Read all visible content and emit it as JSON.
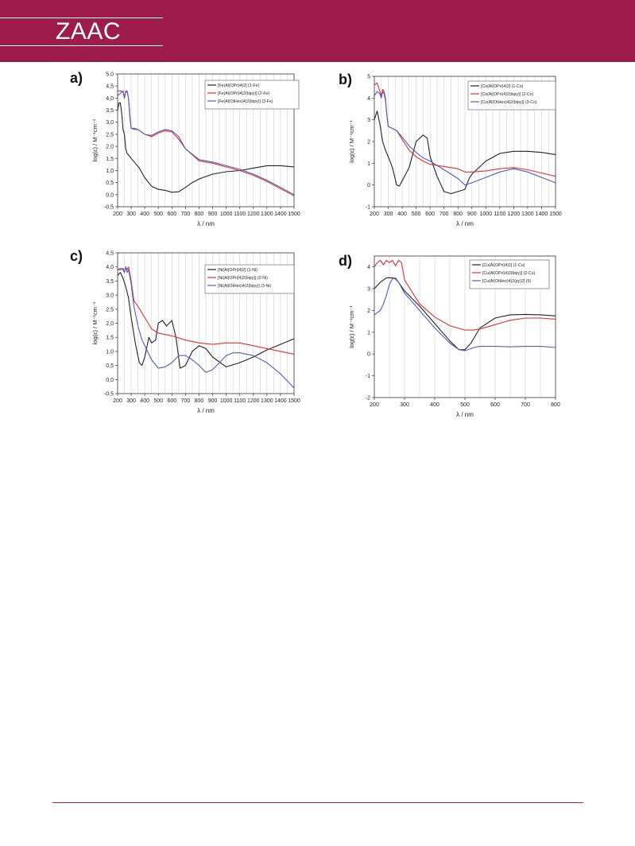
{
  "header": {
    "journal": "ZAAC",
    "color": "#9e1c49"
  },
  "chart_data": [
    {
      "panel": "a)",
      "type": "line",
      "xlabel": "λ / nm",
      "ylabel": "log(ε) / M⁻¹cm⁻¹",
      "xlim": [
        200,
        1500
      ],
      "ylim": [
        -0.5,
        5.0
      ],
      "xticks": [
        200,
        300,
        400,
        500,
        600,
        700,
        800,
        900,
        1000,
        1100,
        1200,
        1300,
        1400,
        1500
      ],
      "yticks": [
        "-0,5",
        "0,0",
        "0,5",
        "1,0",
        "1,5",
        "2,0",
        "2,5",
        "3,0",
        "3,5",
        "4,0",
        "4,5",
        "5,0"
      ],
      "yticks_values": [
        -0.5,
        0,
        0.5,
        1,
        1.5,
        2,
        2.5,
        3,
        3.5,
        4,
        4.5,
        5
      ],
      "grid": "vertical",
      "legend": "top-right",
      "series": [
        {
          "name": "[Fe(Al(OPri)4)2] (1-Fe)",
          "color": "#222222",
          "x": [
            200,
            210,
            220,
            230,
            240,
            250,
            260,
            270,
            280,
            300,
            330,
            360,
            400,
            450,
            500,
            550,
            600,
            650,
            700,
            750,
            800,
            900,
            1000,
            1100,
            1200,
            1300,
            1400,
            1500
          ],
          "y": [
            3.5,
            3.8,
            3.8,
            3.4,
            2.7,
            2.5,
            1.9,
            1.7,
            1.65,
            1.5,
            1.3,
            1.1,
            0.7,
            0.35,
            0.22,
            0.18,
            0.1,
            0.12,
            0.3,
            0.5,
            0.65,
            0.85,
            0.95,
            1.0,
            1.1,
            1.2,
            1.2,
            1.15
          ]
        },
        {
          "name": "[Fe(Al(OPri)4)2(bipy)] (2-Fe)",
          "color": "#e03030",
          "x": [
            200,
            220,
            240,
            250,
            260,
            270,
            280,
            290,
            300,
            320,
            350,
            400,
            450,
            500,
            550,
            600,
            650,
            700,
            800,
            900,
            1000,
            1100,
            1200,
            1300,
            1400,
            1500
          ],
          "y": [
            4.3,
            4.3,
            4.25,
            4.0,
            4.25,
            4.3,
            4.0,
            3.3,
            2.75,
            2.7,
            2.7,
            2.5,
            2.4,
            2.55,
            2.65,
            2.6,
            2.3,
            1.9,
            1.4,
            1.3,
            1.15,
            1.0,
            0.8,
            0.55,
            0.25,
            -0.05
          ]
        },
        {
          "name": "[Fe(Al(OtHex)4)2(bipy)] (3-Fe)",
          "color": "#4a5fc0",
          "x": [
            200,
            220,
            240,
            250,
            260,
            270,
            280,
            290,
            300,
            320,
            350,
            400,
            450,
            500,
            550,
            600,
            650,
            700,
            800,
            900,
            1000,
            1100,
            1200,
            1300,
            1400,
            1500
          ],
          "y": [
            4.1,
            4.2,
            4.3,
            4.0,
            4.3,
            4.25,
            4.0,
            3.2,
            2.75,
            2.75,
            2.7,
            2.5,
            2.45,
            2.6,
            2.7,
            2.65,
            2.4,
            1.9,
            1.45,
            1.35,
            1.2,
            1.05,
            0.85,
            0.6,
            0.3,
            0.0
          ]
        }
      ]
    },
    {
      "panel": "b)",
      "type": "line",
      "xlabel": "λ / nm",
      "ylabel": "log(ε) / M⁻¹cm⁻¹",
      "xlim": [
        200,
        1500
      ],
      "ylim": [
        -1,
        5
      ],
      "xticks": [
        200,
        300,
        400,
        500,
        600,
        700,
        800,
        900,
        1000,
        1100,
        1200,
        1300,
        1400,
        1500
      ],
      "yticks": [
        "-1",
        "0",
        "1",
        "2",
        "3",
        "4",
        "5"
      ],
      "yticks_values": [
        -1,
        0,
        1,
        2,
        3,
        4,
        5
      ],
      "grid": "vertical",
      "legend": "top-right",
      "series": [
        {
          "name": "[Co(Al(OPri)4)2] (1-Co)",
          "color": "#222222",
          "x": [
            200,
            220,
            240,
            260,
            280,
            300,
            330,
            360,
            380,
            400,
            450,
            500,
            550,
            580,
            600,
            650,
            700,
            750,
            800,
            850,
            880,
            900,
            1000,
            1100,
            1200,
            1300,
            1400,
            1500
          ],
          "y": [
            3.0,
            3.4,
            2.8,
            2.0,
            1.6,
            1.3,
            0.8,
            0.0,
            -0.05,
            0.2,
            0.8,
            2.0,
            2.3,
            2.15,
            1.3,
            0.4,
            -0.3,
            -0.4,
            -0.3,
            -0.2,
            0.3,
            0.5,
            1.1,
            1.45,
            1.55,
            1.55,
            1.5,
            1.4
          ]
        },
        {
          "name": "[Co(Al(OPri)4)2(bipy)] (2-Co)",
          "color": "#e03030",
          "x": [
            200,
            220,
            240,
            250,
            260,
            270,
            280,
            290,
            300,
            330,
            360,
            400,
            450,
            500,
            550,
            600,
            700,
            800,
            850,
            900,
            1000,
            1100,
            1200,
            1300,
            1400,
            1500
          ],
          "y": [
            4.6,
            4.7,
            4.3,
            4.1,
            4.4,
            4.3,
            4.0,
            3.2,
            2.7,
            2.6,
            2.5,
            2.1,
            1.6,
            1.3,
            1.1,
            0.95,
            0.85,
            0.75,
            0.6,
            0.6,
            0.65,
            0.75,
            0.8,
            0.7,
            0.55,
            0.4
          ]
        },
        {
          "name": "[Co(Al(OtHex)4)2(bipy)] (3-Co)",
          "color": "#4a5fc0",
          "x": [
            200,
            220,
            240,
            250,
            260,
            270,
            280,
            290,
            300,
            330,
            360,
            400,
            450,
            500,
            550,
            600,
            700,
            800,
            850,
            900,
            1000,
            1100,
            1200,
            1300,
            1400,
            1500
          ],
          "y": [
            4.1,
            4.3,
            4.2,
            4.0,
            4.3,
            4.2,
            3.9,
            3.2,
            2.7,
            2.6,
            2.5,
            2.2,
            1.8,
            1.5,
            1.25,
            1.1,
            0.7,
            0.3,
            0.0,
            0.1,
            0.35,
            0.6,
            0.75,
            0.6,
            0.35,
            0.1
          ]
        }
      ]
    },
    {
      "panel": "c)",
      "type": "line",
      "xlabel": "λ / nm",
      "ylabel": "log(ε) / M⁻¹cm⁻¹",
      "xlim": [
        200,
        1500
      ],
      "ylim": [
        -0.5,
        4.5
      ],
      "xticks": [
        200,
        300,
        400,
        500,
        600,
        700,
        800,
        900,
        1000,
        1100,
        1200,
        1300,
        1400,
        1500
      ],
      "yticks": [
        "-0,5",
        "0,0",
        "0,5",
        "1,0",
        "1,5",
        "2,0",
        "2,5",
        "3,0",
        "3,5",
        "4,0",
        "4,5"
      ],
      "yticks_values": [
        -0.5,
        0,
        0.5,
        1,
        1.5,
        2,
        2.5,
        3,
        3.5,
        4,
        4.5
      ],
      "grid": "vertical",
      "legend": "top-right",
      "series": [
        {
          "name": "[Ni(Al(OPri)4)2] (1-Ni)",
          "color": "#222222",
          "x": [
            200,
            220,
            240,
            260,
            280,
            300,
            330,
            360,
            380,
            400,
            430,
            450,
            480,
            500,
            530,
            560,
            600,
            630,
            660,
            700,
            750,
            800,
            850,
            900,
            1000,
            1100,
            1200,
            1300,
            1400,
            1500
          ],
          "y": [
            3.7,
            3.8,
            3.6,
            3.3,
            2.9,
            2.2,
            1.3,
            0.6,
            0.5,
            0.8,
            1.5,
            1.3,
            1.4,
            2.0,
            2.1,
            1.9,
            2.1,
            1.5,
            0.4,
            0.5,
            1.0,
            1.2,
            1.1,
            0.8,
            0.45,
            0.6,
            0.8,
            1.05,
            1.25,
            1.45
          ]
        },
        {
          "name": "[Ni(Al(OPri)4)2(bipy)] (2-Ni)",
          "color": "#e03030",
          "x": [
            200,
            220,
            240,
            250,
            260,
            270,
            280,
            300,
            320,
            350,
            400,
            450,
            500,
            600,
            700,
            800,
            900,
            1000,
            1100,
            1200,
            1300,
            1400,
            1500
          ],
          "y": [
            3.9,
            3.95,
            3.9,
            3.8,
            4.0,
            3.9,
            4.0,
            3.5,
            2.8,
            2.6,
            2.2,
            1.8,
            1.65,
            1.55,
            1.4,
            1.3,
            1.25,
            1.3,
            1.3,
            1.2,
            1.1,
            1.0,
            0.9
          ]
        },
        {
          "name": "[Ni(Al(OtHex)4)2(bipy)] (3-Ni)",
          "color": "#4a5fc0",
          "x": [
            200,
            220,
            240,
            250,
            260,
            270,
            280,
            300,
            320,
            350,
            380,
            400,
            450,
            500,
            550,
            600,
            650,
            700,
            750,
            800,
            850,
            900,
            950,
            1000,
            1050,
            1100,
            1200,
            1300,
            1400,
            1500
          ],
          "y": [
            3.9,
            3.9,
            3.95,
            3.8,
            4.0,
            3.8,
            3.9,
            3.4,
            2.6,
            1.9,
            1.4,
            1.2,
            0.7,
            0.4,
            0.45,
            0.6,
            0.85,
            0.85,
            0.7,
            0.5,
            0.25,
            0.35,
            0.6,
            0.85,
            0.95,
            0.95,
            0.85,
            0.6,
            0.2,
            -0.3
          ]
        }
      ]
    },
    {
      "panel": "d)",
      "type": "line",
      "xlabel": "λ / nm",
      "ylabel": "log(ε) / M⁻¹cm⁻¹",
      "xlim": [
        200,
        800
      ],
      "ylim": [
        -2,
        4.5
      ],
      "xticks": [
        200,
        300,
        400,
        500,
        600,
        700,
        800
      ],
      "yticks": [
        "-2",
        "-1",
        "0",
        "1",
        "2",
        "3",
        "4"
      ],
      "yticks_values": [
        -2,
        -1,
        0,
        1,
        2,
        3,
        4
      ],
      "grid": "vertical",
      "legend": "top-right",
      "series": [
        {
          "name": "[Cu(Al(OPri)4)2] (1-Cu)",
          "color": "#222222",
          "x": [
            200,
            220,
            240,
            260,
            270,
            280,
            300,
            350,
            400,
            450,
            480,
            500,
            520,
            550,
            600,
            650,
            700,
            750,
            800
          ],
          "y": [
            3.0,
            3.3,
            3.5,
            3.5,
            3.45,
            3.3,
            2.9,
            2.2,
            1.4,
            0.6,
            0.2,
            0.2,
            0.5,
            1.2,
            1.65,
            1.8,
            1.82,
            1.8,
            1.75
          ]
        },
        {
          "name": "[Cu(Al(OPri)4)2(bipy)] (2-Cu)",
          "color": "#e03030",
          "x": [
            200,
            210,
            220,
            230,
            240,
            250,
            260,
            270,
            280,
            290,
            300,
            350,
            400,
            450,
            500,
            530,
            550,
            600,
            650,
            700,
            750,
            800
          ],
          "y": [
            4.0,
            4.2,
            4.3,
            4.1,
            4.3,
            4.2,
            4.3,
            4.05,
            4.3,
            4.2,
            3.4,
            2.3,
            1.7,
            1.3,
            1.1,
            1.1,
            1.15,
            1.35,
            1.55,
            1.65,
            1.65,
            1.6
          ]
        },
        {
          "name": "[Cu(Al(OtHex)4)2(py)2] (5)",
          "color": "#4a5fc0",
          "x": [
            200,
            210,
            220,
            230,
            240,
            250,
            260,
            270,
            280,
            300,
            350,
            400,
            450,
            480,
            500,
            530,
            550,
            600,
            650,
            700,
            750,
            800
          ],
          "y": [
            1.8,
            1.9,
            2.0,
            2.3,
            2.7,
            3.2,
            3.45,
            3.5,
            3.3,
            2.8,
            2.0,
            1.2,
            0.5,
            0.2,
            0.15,
            0.3,
            0.35,
            0.35,
            0.33,
            0.35,
            0.35,
            0.3
          ]
        }
      ]
    }
  ]
}
